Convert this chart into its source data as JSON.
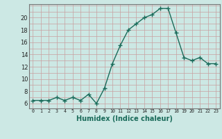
{
  "x": [
    0,
    1,
    2,
    3,
    4,
    5,
    6,
    7,
    8,
    9,
    10,
    11,
    12,
    13,
    14,
    15,
    16,
    17,
    18,
    19,
    20,
    21,
    22,
    23
  ],
  "y": [
    6.5,
    6.5,
    6.5,
    7.0,
    6.5,
    7.0,
    6.5,
    7.5,
    6.0,
    8.5,
    12.5,
    15.5,
    18.0,
    19.0,
    20.0,
    20.5,
    21.5,
    21.5,
    17.5,
    13.5,
    13.0,
    13.5,
    12.5,
    12.5
  ],
  "xlabel": "Humidex (Indice chaleur)",
  "bg_color": "#cce8e4",
  "line_color": "#1a6b5a",
  "grid_color_major": "#c8a0a0",
  "grid_color_minor": "#c8a0a0",
  "yticks": [
    6,
    8,
    10,
    12,
    14,
    16,
    18,
    20
  ],
  "xticks": [
    0,
    1,
    2,
    3,
    4,
    5,
    6,
    7,
    8,
    9,
    10,
    11,
    12,
    13,
    14,
    15,
    16,
    17,
    18,
    19,
    20,
    21,
    22,
    23
  ],
  "ylim": [
    5.2,
    22.2
  ],
  "xlim": [
    -0.5,
    23.5
  ]
}
